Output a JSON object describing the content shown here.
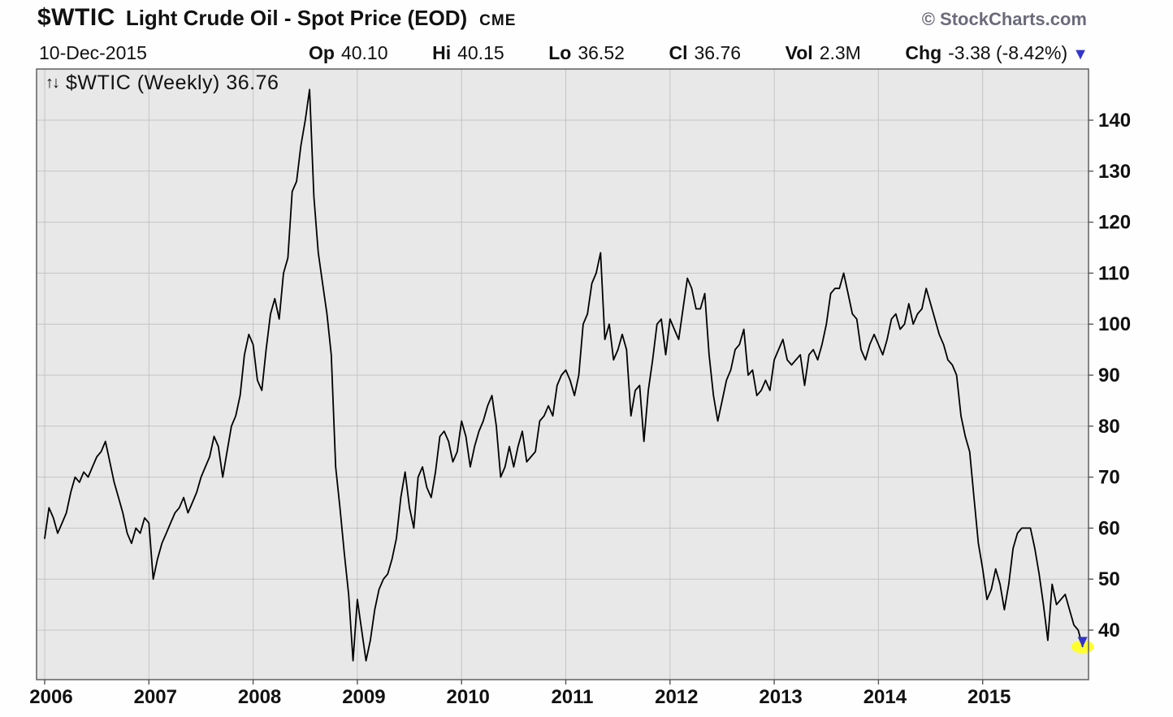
{
  "header": {
    "symbol": "$WTIC",
    "title": "Light Crude Oil - Spot Price (EOD)",
    "exchange": "CME",
    "copyright": "© StockCharts.com"
  },
  "quote_bar": {
    "date": "10-Dec-2015",
    "op": {
      "label": "Op",
      "value": "40.10"
    },
    "hi": {
      "label": "Hi",
      "value": "40.15"
    },
    "lo": {
      "label": "Lo",
      "value": "36.52"
    },
    "cl": {
      "label": "Cl",
      "value": "36.76"
    },
    "vol": {
      "label": "Vol",
      "value": "2.3M"
    },
    "chg": {
      "label": "Chg",
      "value": "-3.38 (-8.42%)"
    }
  },
  "icons": {
    "down_triangle": "▼",
    "updown_arrows": "↑↓"
  },
  "overlay": {
    "arrows": "↑↓",
    "label": "$WTIC (Weekly) 36.76"
  },
  "colors": {
    "line": "#000000",
    "plot_bg": "#e8e8e8",
    "grid": "#c4c4c4",
    "border": "#555555",
    "marker_highlight": "#ffff2e",
    "arrow_blue": "#3434cf",
    "copyright_grey": "#6b6b7b"
  },
  "chart_data": {
    "type": "line",
    "title": "$WTIC (Weekly)",
    "subtitle": "Light Crude Oil - Spot Price (EOD) CME",
    "xlabel": "",
    "ylabel": "",
    "grid": true,
    "legend_position": "none",
    "line_color": "#000000",
    "plot_bg": "#e8e8e8",
    "grid_color": "#c4c4c4",
    "border_color": "#555555",
    "marker_color": "#ffff2e",
    "arrow_color": "#3434cf",
    "x_start": 2006.0,
    "x_step": 0.0416667,
    "xlim": [
      2005.92,
      2016.02
    ],
    "ylim": [
      30.5,
      150
    ],
    "x_ticks": [
      2006,
      2007,
      2008,
      2009,
      2010,
      2011,
      2012,
      2013,
      2014,
      2015
    ],
    "x_tick_labels": [
      "2006",
      "2007",
      "2008",
      "2009",
      "2010",
      "2011",
      "2012",
      "2013",
      "2014",
      "2015"
    ],
    "y_ticks": [
      40,
      50,
      60,
      70,
      80,
      90,
      100,
      110,
      120,
      130,
      140
    ],
    "last_value": 36.76,
    "values": [
      58,
      64,
      62,
      59,
      61,
      63,
      67,
      70,
      69,
      71,
      70,
      72,
      74,
      75,
      77,
      73,
      69,
      66,
      63,
      59,
      57,
      60,
      59,
      62,
      61,
      50,
      54,
      57,
      59,
      61,
      63,
      64,
      66,
      63,
      65,
      67,
      70,
      72,
      74,
      78,
      76,
      70,
      75,
      80,
      82,
      86,
      94,
      98,
      96,
      89,
      87,
      95,
      102,
      105,
      101,
      110,
      113,
      126,
      128,
      135,
      140,
      146,
      125,
      114,
      108,
      102,
      94,
      72,
      64,
      55,
      47,
      34,
      46,
      40,
      34,
      38,
      44,
      48,
      50,
      51,
      54,
      58,
      66,
      71,
      64,
      60,
      70,
      72,
      68,
      66,
      71,
      78,
      79,
      77,
      73,
      75,
      81,
      78,
      72,
      76,
      79,
      81,
      84,
      86,
      80,
      70,
      72,
      76,
      72,
      76,
      79,
      73,
      74,
      75,
      81,
      82,
      84,
      82,
      88,
      90,
      91,
      89,
      86,
      90,
      100,
      102,
      108,
      110,
      114,
      97,
      100,
      93,
      95,
      98,
      95,
      82,
      87,
      88,
      77,
      87,
      93,
      100,
      101,
      94,
      101,
      99,
      97,
      103,
      109,
      107,
      103,
      103,
      106,
      94,
      86,
      81,
      85,
      89,
      91,
      95,
      96,
      99,
      90,
      91,
      86,
      87,
      89,
      87,
      93,
      95,
      97,
      93,
      92,
      93,
      94,
      88,
      94,
      95,
      93,
      96,
      100,
      106,
      107,
      107,
      110,
      106,
      102,
      101,
      95,
      93,
      96,
      98,
      96,
      94,
      97,
      101,
      102,
      99,
      100,
      104,
      100,
      102,
      103,
      107,
      104,
      101,
      98,
      96,
      93,
      92,
      90,
      82,
      78,
      75,
      66,
      57,
      52,
      46,
      48,
      52,
      49,
      44,
      49,
      56,
      59,
      60,
      60,
      60,
      56,
      51,
      45,
      38,
      49,
      45,
      46,
      47,
      44,
      41,
      40,
      36.76
    ]
  }
}
